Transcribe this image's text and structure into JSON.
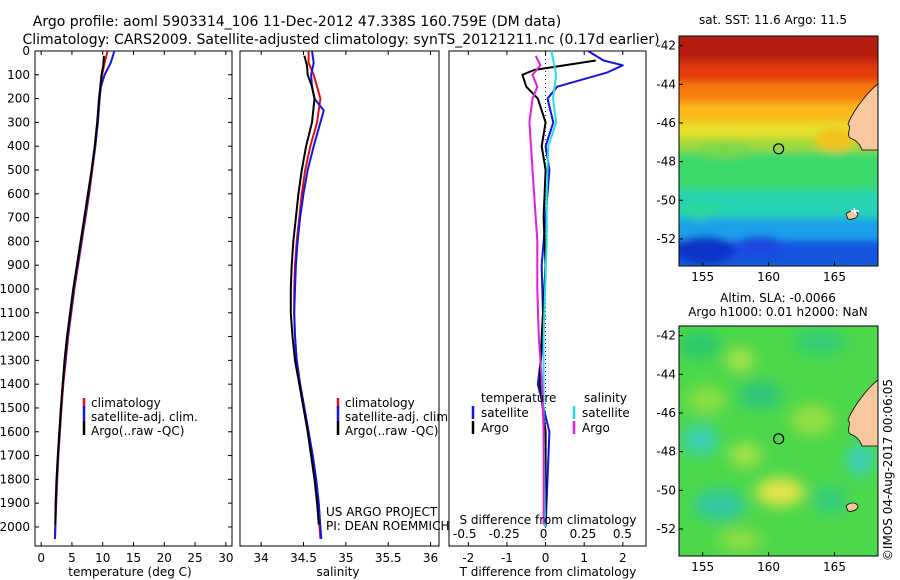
{
  "header": {
    "title_line1": "Argo profile: aoml 5903314_106 11-Dec-2012 47.338S 160.759E (DM data)",
    "title_line2": "Climatology: CARS2009. Satellite-adjusted climatology: synTS_20121211.nc (0.17d earlier)"
  },
  "colors": {
    "climatology": "#e01010",
    "satellite": "#1414e6",
    "argo": "#000000",
    "satellite_salinity": "#22e0e8",
    "argo_salinity": "#e01ee0"
  },
  "chart_data": [
    {
      "type": "line",
      "xlabel": "temperature (deg C)",
      "ylabel": "",
      "xlim": [
        -1,
        31
      ],
      "ylim": [
        2080,
        0
      ],
      "xticks": [
        0,
        5,
        10,
        15,
        20,
        25,
        30
      ],
      "yticks": [
        0,
        100,
        200,
        300,
        400,
        500,
        600,
        700,
        800,
        900,
        1000,
        1100,
        1200,
        1300,
        1400,
        1500,
        1600,
        1700,
        1800,
        1900,
        2000
      ],
      "legend": {
        "position": "lower-right",
        "entries": [
          "climatology",
          "satellite-adj. clim.",
          "Argo(..raw -QC)"
        ]
      },
      "series": [
        {
          "name": "climatology",
          "color": "#e01010",
          "points": [
            [
              10.8,
              0
            ],
            [
              10.3,
              50
            ],
            [
              9.9,
              100
            ],
            [
              9.6,
              150
            ],
            [
              9.5,
              200
            ],
            [
              9.2,
              300
            ],
            [
              8.8,
              400
            ],
            [
              8.3,
              500
            ],
            [
              7.8,
              600
            ],
            [
              7.2,
              700
            ],
            [
              6.6,
              800
            ],
            [
              6.0,
              900
            ],
            [
              5.4,
              1000
            ],
            [
              4.9,
              1100
            ],
            [
              4.4,
              1200
            ],
            [
              4.0,
              1300
            ],
            [
              3.6,
              1400
            ],
            [
              3.3,
              1500
            ],
            [
              3.05,
              1600
            ],
            [
              2.8,
              1700
            ],
            [
              2.6,
              1800
            ],
            [
              2.45,
              1900
            ],
            [
              2.3,
              2000
            ],
            [
              2.25,
              2050
            ]
          ]
        },
        {
          "name": "satellite-adj. clim.",
          "color": "#1414e6",
          "points": [
            [
              11.9,
              0
            ],
            [
              11.3,
              50
            ],
            [
              10.3,
              100
            ],
            [
              9.7,
              150
            ],
            [
              9.5,
              200
            ],
            [
              9.2,
              300
            ],
            [
              8.8,
              400
            ],
            [
              8.2,
              500
            ],
            [
              7.7,
              600
            ],
            [
              7.1,
              700
            ],
            [
              6.5,
              800
            ],
            [
              5.9,
              900
            ],
            [
              5.3,
              1000
            ],
            [
              4.8,
              1100
            ],
            [
              4.3,
              1200
            ],
            [
              3.9,
              1300
            ],
            [
              3.5,
              1400
            ],
            [
              3.2,
              1500
            ],
            [
              3.0,
              1600
            ],
            [
              2.75,
              1700
            ],
            [
              2.55,
              1800
            ],
            [
              2.4,
              1900
            ],
            [
              2.3,
              2000
            ],
            [
              2.25,
              2050
            ]
          ]
        },
        {
          "name": "Argo(..raw -QC)",
          "color": "#000000",
          "points": [
            [
              10.2,
              20
            ],
            [
              10.1,
              60
            ],
            [
              9.8,
              100
            ],
            [
              9.6,
              150
            ],
            [
              9.4,
              200
            ],
            [
              9.1,
              300
            ],
            [
              8.7,
              400
            ],
            [
              8.2,
              500
            ],
            [
              7.6,
              600
            ],
            [
              7.0,
              700
            ],
            [
              6.4,
              800
            ],
            [
              5.8,
              900
            ],
            [
              5.2,
              1000
            ],
            [
              4.7,
              1100
            ],
            [
              4.2,
              1200
            ],
            [
              3.8,
              1300
            ],
            [
              3.5,
              1400
            ],
            [
              3.2,
              1500
            ],
            [
              2.95,
              1600
            ],
            [
              2.7,
              1700
            ],
            [
              2.5,
              1800
            ],
            [
              2.35,
              1900
            ],
            [
              2.3,
              1990
            ]
          ]
        }
      ]
    },
    {
      "type": "line",
      "xlabel": "salinity",
      "ylabel": "",
      "xlim": [
        33.75,
        36.1
      ],
      "ylim": [
        2080,
        0
      ],
      "xticks": [
        34,
        34.5,
        35,
        35.5,
        36
      ],
      "yticks": [],
      "legend": {
        "position": "lower-right",
        "entries": [
          "climatology",
          "satellite-adj. clim.",
          "Argo(..raw -QC)"
        ]
      },
      "annotation": {
        "line1": "US ARGO PROJECT",
        "line2": "PI: DEAN ROEMMICH"
      },
      "series": [
        {
          "name": "climatology",
          "color": "#e01010",
          "points": [
            [
              34.56,
              0
            ],
            [
              34.56,
              50
            ],
            [
              34.62,
              100
            ],
            [
              34.66,
              150
            ],
            [
              34.7,
              200
            ],
            [
              34.66,
              300
            ],
            [
              34.58,
              400
            ],
            [
              34.52,
              500
            ],
            [
              34.48,
              600
            ],
            [
              34.45,
              700
            ],
            [
              34.42,
              800
            ],
            [
              34.4,
              900
            ],
            [
              34.39,
              1000
            ],
            [
              34.39,
              1100
            ],
            [
              34.4,
              1200
            ],
            [
              34.42,
              1300
            ],
            [
              34.46,
              1400
            ],
            [
              34.51,
              1500
            ],
            [
              34.56,
              1600
            ],
            [
              34.6,
              1700
            ],
            [
              34.64,
              1800
            ],
            [
              34.67,
              1900
            ],
            [
              34.69,
              2000
            ],
            [
              34.7,
              2050
            ]
          ]
        },
        {
          "name": "satellite-adj. clim.",
          "color": "#1414e6",
          "points": [
            [
              34.6,
              0
            ],
            [
              34.62,
              50
            ],
            [
              34.59,
              100
            ],
            [
              34.6,
              150
            ],
            [
              34.63,
              200
            ],
            [
              34.74,
              250
            ],
            [
              34.7,
              300
            ],
            [
              34.62,
              400
            ],
            [
              34.55,
              500
            ],
            [
              34.5,
              600
            ],
            [
              34.46,
              700
            ],
            [
              34.43,
              800
            ],
            [
              34.41,
              900
            ],
            [
              34.4,
              1000
            ],
            [
              34.39,
              1100
            ],
            [
              34.4,
              1200
            ],
            [
              34.42,
              1300
            ],
            [
              34.46,
              1400
            ],
            [
              34.51,
              1500
            ],
            [
              34.56,
              1600
            ],
            [
              34.61,
              1700
            ],
            [
              34.65,
              1800
            ],
            [
              34.68,
              1900
            ],
            [
              34.7,
              2000
            ],
            [
              34.71,
              2050
            ]
          ]
        },
        {
          "name": "Argo(..raw -QC)",
          "color": "#000000",
          "points": [
            [
              34.51,
              20
            ],
            [
              34.54,
              60
            ],
            [
              34.55,
              100
            ],
            [
              34.6,
              150
            ],
            [
              34.63,
              200
            ],
            [
              34.6,
              300
            ],
            [
              34.53,
              400
            ],
            [
              34.48,
              500
            ],
            [
              34.44,
              600
            ],
            [
              34.41,
              700
            ],
            [
              34.38,
              800
            ],
            [
              34.36,
              900
            ],
            [
              34.35,
              1000
            ],
            [
              34.35,
              1100
            ],
            [
              34.37,
              1200
            ],
            [
              34.4,
              1300
            ],
            [
              34.45,
              1400
            ],
            [
              34.5,
              1500
            ],
            [
              34.55,
              1600
            ],
            [
              34.59,
              1700
            ],
            [
              34.63,
              1800
            ],
            [
              34.66,
              1900
            ],
            [
              34.68,
              1990
            ]
          ]
        }
      ]
    },
    {
      "type": "line",
      "xlabel": "T difference from climatology",
      "xlabel_top": "S difference from climatology",
      "ylabel": "",
      "xlim": [
        -2.5,
        2.6
      ],
      "x2lim": [
        -0.6,
        0.65
      ],
      "ylim": [
        2080,
        0
      ],
      "xticks": [
        -2,
        -1,
        0,
        1,
        2
      ],
      "x2ticks": [
        -0.5,
        -0.25,
        0,
        0.25,
        0.5
      ],
      "x2ticklabels": [
        "-0.5",
        "-0.25",
        "0",
        "0.25",
        "0.5"
      ],
      "legend": {
        "position": "lower-center",
        "temperature_heading": "temperature",
        "salinity_heading": "salinity",
        "entries": [
          "satellite",
          "Argo",
          "satellite",
          "Argo"
        ]
      },
      "series": [
        {
          "name": "satellite",
          "axis": "T",
          "color": "#1414e6",
          "points": [
            [
              1.1,
              0
            ],
            [
              1.5,
              40
            ],
            [
              2.0,
              60
            ],
            [
              1.6,
              90
            ],
            [
              0.3,
              150
            ],
            [
              0.05,
              200
            ],
            [
              0.2,
              300
            ],
            [
              0.0,
              400
            ],
            [
              0.1,
              500
            ],
            [
              0.0,
              700
            ],
            [
              -0.1,
              900
            ],
            [
              -0.05,
              1200
            ],
            [
              -0.2,
              1400
            ],
            [
              0.1,
              1600
            ],
            [
              0.0,
              2000
            ]
          ]
        },
        {
          "name": "Argo",
          "axis": "T",
          "color": "#000000",
          "points": [
            [
              1.3,
              40
            ],
            [
              0.5,
              60
            ],
            [
              -0.3,
              80
            ],
            [
              -0.6,
              100
            ],
            [
              -0.5,
              150
            ],
            [
              -0.2,
              200
            ],
            [
              0.0,
              300
            ],
            [
              -0.1,
              400
            ],
            [
              0.0,
              500
            ],
            [
              -0.05,
              700
            ],
            [
              0.0,
              900
            ],
            [
              -0.1,
              1200
            ],
            [
              -0.15,
              1400
            ],
            [
              0.0,
              1600
            ],
            [
              0.0,
              1990
            ]
          ]
        },
        {
          "name": "satellite",
          "axis": "S",
          "color": "#22e0e8",
          "points": [
            [
              0.05,
              0
            ],
            [
              0.08,
              100
            ],
            [
              0.06,
              200
            ],
            [
              0.08,
              300
            ],
            [
              0.03,
              400
            ],
            [
              0.02,
              600
            ],
            [
              0.02,
              800
            ],
            [
              0.01,
              1000
            ],
            [
              0.0,
              1200
            ],
            [
              0.0,
              1600
            ],
            [
              0.01,
              2000
            ]
          ]
        },
        {
          "name": "Argo",
          "axis": "S",
          "color": "#e01ee0",
          "points": [
            [
              -0.05,
              20
            ],
            [
              -0.02,
              60
            ],
            [
              -0.07,
              100
            ],
            [
              -0.04,
              150
            ],
            [
              -0.07,
              200
            ],
            [
              -0.09,
              300
            ],
            [
              -0.08,
              400
            ],
            [
              -0.06,
              600
            ],
            [
              -0.04,
              800
            ],
            [
              -0.04,
              1000
            ],
            [
              -0.03,
              1200
            ],
            [
              -0.01,
              1400
            ],
            [
              0.0,
              1600
            ],
            [
              0.0,
              1990
            ]
          ]
        }
      ]
    },
    {
      "type": "heatmap",
      "title": "sat. SST: 11.6 Argo: 11.5",
      "xlim": [
        153.2,
        168.3
      ],
      "ylim": [
        -53.4,
        -41.5
      ],
      "xticks": [
        155,
        160,
        165
      ],
      "yticks": [
        -42,
        -44,
        -46,
        -48,
        -50,
        -52
      ],
      "yticklabels": [
        "-42",
        "-44",
        "-46",
        "-48",
        "-50",
        "-52"
      ],
      "marker": {
        "lon": 160.759,
        "lat": -47.338
      }
    },
    {
      "type": "heatmap",
      "title_line1": "Altim. SLA: -0.0066",
      "title_line2": "Argo h1000: 0.01 h2000: NaN",
      "xlim": [
        153.2,
        168.3
      ],
      "ylim": [
        -53.4,
        -41.5
      ],
      "xticks": [
        155,
        160,
        165
      ],
      "yticks": [
        -42,
        -44,
        -46,
        -48,
        -50,
        -52
      ],
      "yticklabels": [
        "-42",
        "-44",
        "-46",
        "-48",
        "-50",
        "-52"
      ],
      "marker": {
        "lon": 160.759,
        "lat": -47.338
      },
      "credit": "©IMOS 04-Aug-2017 00:06:05"
    }
  ]
}
